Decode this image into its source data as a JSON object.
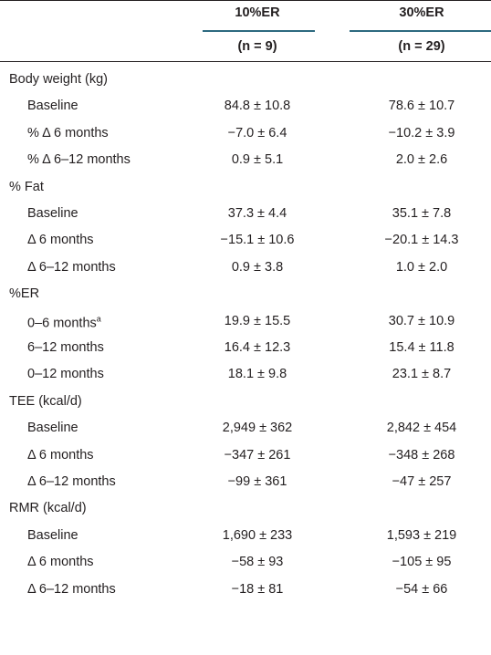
{
  "table": {
    "columns": [
      "10%ER",
      "30%ER"
    ],
    "subheaders": [
      "(n = 9)",
      "(n = 29)"
    ],
    "sections": [
      {
        "title": "Body weight (kg)",
        "rows": [
          {
            "label": "Baseline",
            "values": [
              "84.8 ± 10.8",
              "78.6 ± 10.7"
            ]
          },
          {
            "label": "% Δ 6 months",
            "values": [
              "−7.0 ± 6.4",
              "−10.2 ± 3.9"
            ]
          },
          {
            "label": "% Δ 6–12 months",
            "values": [
              "0.9 ± 5.1",
              "2.0 ± 2.6"
            ]
          }
        ]
      },
      {
        "title": "% Fat",
        "rows": [
          {
            "label": "Baseline",
            "values": [
              "37.3 ± 4.4",
              "35.1 ± 7.8"
            ]
          },
          {
            "label": "Δ 6 months",
            "values": [
              "−15.1 ± 10.6",
              "−20.1 ± 14.3"
            ]
          },
          {
            "label": "Δ 6–12 months",
            "values": [
              "0.9 ± 3.8",
              "1.0 ± 2.0"
            ]
          }
        ]
      },
      {
        "title": "%ER",
        "rows": [
          {
            "label": "0–6 months",
            "note": "a",
            "values": [
              "19.9 ± 15.5",
              "30.7 ± 10.9"
            ]
          },
          {
            "label": "6–12 months",
            "values": [
              "16.4 ± 12.3",
              "15.4 ± 11.8"
            ]
          },
          {
            "label": "0–12 months",
            "values": [
              "18.1 ± 9.8",
              "23.1 ± 8.7"
            ]
          }
        ]
      },
      {
        "title": "TEE (kcal/d)",
        "rows": [
          {
            "label": "Baseline",
            "values": [
              "2,949 ± 362",
              "2,842 ± 454"
            ]
          },
          {
            "label": "Δ 6 months",
            "values": [
              "−347 ± 261",
              "−348 ± 268"
            ]
          },
          {
            "label": "Δ 6–12 months",
            "values": [
              "−99 ± 361",
              "−47 ± 257"
            ]
          }
        ]
      },
      {
        "title": "RMR (kcal/d)",
        "rows": [
          {
            "label": "Baseline",
            "values": [
              "1,690 ± 233",
              "1,593 ± 219"
            ]
          },
          {
            "label": "Δ 6 months",
            "values": [
              "−58 ± 93",
              "−105 ± 95"
            ]
          },
          {
            "label": "Δ 6–12 months",
            "values": [
              "−18 ± 81",
              "−54 ± 66"
            ]
          }
        ]
      }
    ]
  }
}
